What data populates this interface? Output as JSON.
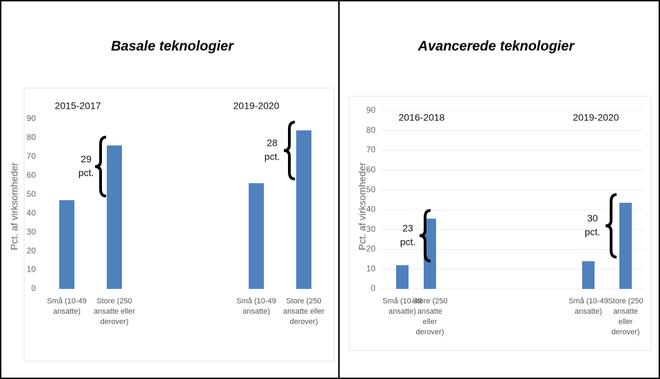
{
  "chart_data": [
    {
      "type": "bar",
      "title": "Basale teknologier",
      "y_label": "Pct. af virksomheder",
      "groups": [
        "2015-2017",
        "2019-2020"
      ],
      "categories": [
        [
          "Små (10-49",
          "ansatte)"
        ],
        [
          "Store (250",
          "ansatte eller",
          "derover)"
        ],
        [
          "Små (10-49",
          "ansatte)"
        ],
        [
          "Store (250",
          "ansatte eller",
          "derover)"
        ]
      ],
      "values": [
        47,
        76,
        56,
        84
      ],
      "color": "#4f81bd",
      "annotations": [
        [
          "29",
          "pct."
        ],
        [
          "28",
          "pct."
        ]
      ],
      "ylim": [
        0,
        90
      ],
      "yticks": [
        0,
        10,
        20,
        30,
        40,
        50,
        60,
        70,
        80,
        90
      ],
      "grid": false
    },
    {
      "type": "bar",
      "title": "Avancerede teknologier",
      "y_label": "Pct. af virksomheder",
      "groups": [
        "2016-2018",
        "2019-2020"
      ],
      "categories": [
        [
          "Små (10-49",
          "ansatte)"
        ],
        [
          "Store (250",
          "ansatte",
          "eller",
          "derover)"
        ],
        [
          "Små (10-49",
          "ansatte)"
        ],
        [
          "Store (250",
          "ansatte",
          "eller",
          "derover)"
        ]
      ],
      "values": [
        12,
        35.5,
        14,
        43.5
      ],
      "color": "#4f81bd",
      "annotations": [
        [
          "23",
          "pct."
        ],
        [
          "30",
          "pct."
        ]
      ],
      "ylim": [
        0,
        90
      ],
      "yticks": [
        0,
        10,
        20,
        30,
        40,
        50,
        60,
        70,
        80,
        90
      ],
      "grid": true
    }
  ]
}
